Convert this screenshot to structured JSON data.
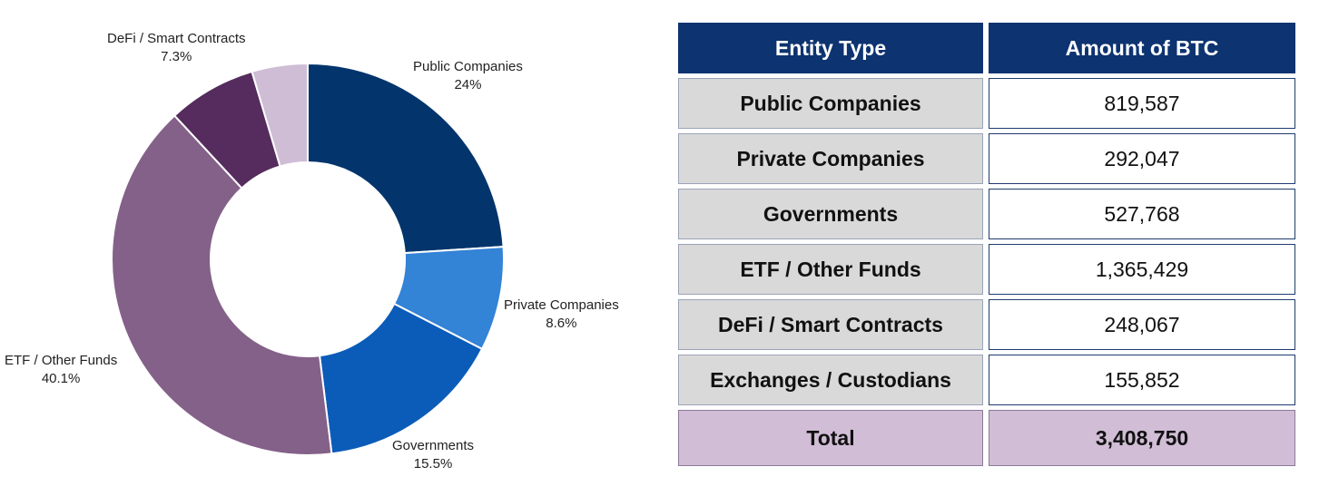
{
  "chart_data": {
    "type": "pie",
    "donut": true,
    "title": "",
    "slices": [
      {
        "label": "Public Companies",
        "pct_label": "24%",
        "value": 24.0,
        "color": "#03356c"
      },
      {
        "label": "Private Companies",
        "pct_label": "8.6%",
        "value": 8.6,
        "color": "#3383d6"
      },
      {
        "label": "Governments",
        "pct_label": "15.5%",
        "value": 15.5,
        "color": "#0b5cb8"
      },
      {
        "label": "ETF / Other Funds",
        "pct_label": "40.1%",
        "value": 40.1,
        "color": "#846189"
      },
      {
        "label": "DeFi / Smart Contracts",
        "pct_label": "7.3%",
        "value": 7.3,
        "color": "#552c5d"
      },
      {
        "label": "",
        "pct_label": "",
        "value": 4.6,
        "color": "#cfbdd6"
      }
    ]
  },
  "table": {
    "headers": [
      "Entity Type",
      "Amount of BTC"
    ],
    "rows": [
      {
        "entity": "Public Companies",
        "amount": "819,587"
      },
      {
        "entity": "Private Companies",
        "amount": "292,047"
      },
      {
        "entity": "Governments",
        "amount": "527,768"
      },
      {
        "entity": "ETF / Other Funds",
        "amount": "1,365,429"
      },
      {
        "entity": "DeFi / Smart Contracts",
        "amount": "248,067"
      },
      {
        "entity": "Exchanges / Custodians",
        "amount": "155,852"
      }
    ],
    "total": {
      "label": "Total",
      "amount": "3,408,750"
    }
  }
}
